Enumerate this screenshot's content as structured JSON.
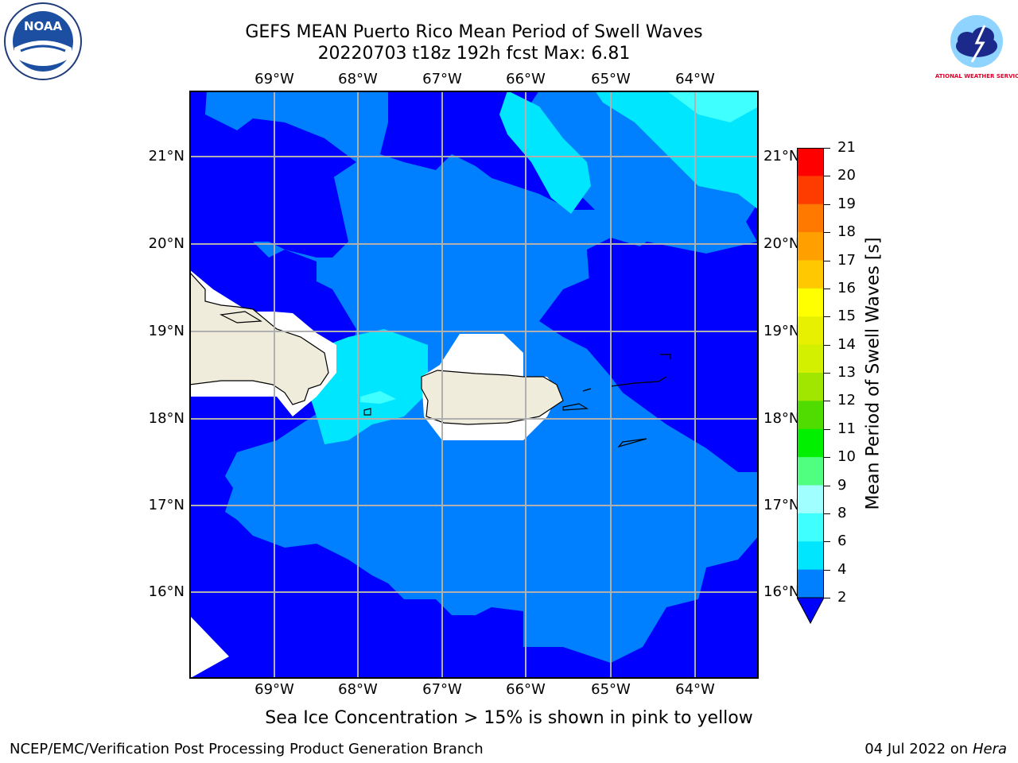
{
  "title": {
    "line1": "GEFS MEAN Puerto Rico Mean Period of Swell Waves",
    "line2": "20220703 t18z 192h fcst   Max: 6.81"
  },
  "map": {
    "longitude_labels": [
      "69°W",
      "68°W",
      "67°W",
      "66°W",
      "65°W",
      "64°W"
    ],
    "latitude_labels": [
      "21°N",
      "20°N",
      "19°N",
      "18°N",
      "17°N",
      "16°N"
    ],
    "land_color": "#efecdc",
    "no_data_color": "#ffffff",
    "grid_color": "#b0b0b0"
  },
  "colorbar": {
    "label": "Mean Period of Swell Waves [s]",
    "ticks": [
      "2",
      "4",
      "6",
      "8",
      "9",
      "10",
      "11",
      "12",
      "13",
      "14",
      "15",
      "16",
      "17",
      "18",
      "19",
      "20",
      "21"
    ],
    "colors": [
      "#0000ff",
      "#0080ff",
      "#00e6ff",
      "#40ffff",
      "#a0ffff",
      "#50ff80",
      "#00f000",
      "#50dc00",
      "#a0e600",
      "#d2f000",
      "#e6f000",
      "#ffff00",
      "#ffc800",
      "#ffa000",
      "#ff7800",
      "#ff3c00",
      "#ff0000"
    ]
  },
  "footer": {
    "note": "Sea Ice Concentration > 15% is shown in pink to yellow",
    "credit": "NCEP/EMC/Verification Post Processing Product Generation Branch",
    "date": "04 Jul 2022 on ",
    "host": "Hera"
  },
  "logos": {
    "left": "NOAA",
    "right": "NATIONAL WEATHER SERVICE"
  }
}
